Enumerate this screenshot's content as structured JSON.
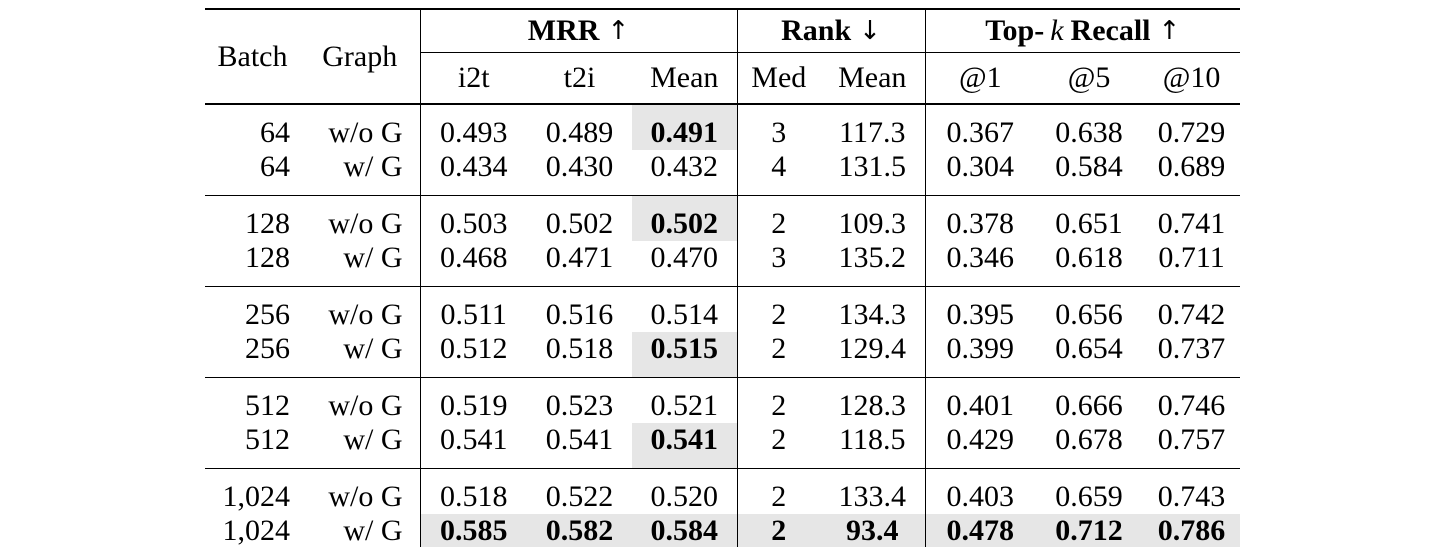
{
  "colors": {
    "background": "#ffffff",
    "text": "#000000",
    "highlight": "#e6e6e6"
  },
  "table": {
    "headers": {
      "batch": "Batch",
      "graph": "Graph",
      "mrr": "MRR",
      "mrr_arrow": "↑",
      "rank": "Rank",
      "rank_arrow": "↓",
      "topk_prefix": "Top-",
      "topk_k": "k",
      "topk_suffix": "Recall",
      "topk_arrow": "↑",
      "sub": [
        "i2t",
        "t2i",
        "Mean",
        "Med",
        "Mean",
        "@1",
        "@5",
        "@10"
      ]
    },
    "rows": [
      [
        "64",
        "w/o G",
        "0.493",
        "0.489",
        "0.491",
        "3",
        "117.3",
        "0.367",
        "0.638",
        "0.729"
      ],
      [
        "64",
        "w/ G",
        "0.434",
        "0.430",
        "0.432",
        "4",
        "131.5",
        "0.304",
        "0.584",
        "0.689"
      ],
      [
        "128",
        "w/o G",
        "0.503",
        "0.502",
        "0.502",
        "2",
        "109.3",
        "0.378",
        "0.651",
        "0.741"
      ],
      [
        "128",
        "w/ G",
        "0.468",
        "0.471",
        "0.470",
        "3",
        "135.2",
        "0.346",
        "0.618",
        "0.711"
      ],
      [
        "256",
        "w/o G",
        "0.511",
        "0.516",
        "0.514",
        "2",
        "134.3",
        "0.395",
        "0.656",
        "0.742"
      ],
      [
        "256",
        "w/ G",
        "0.512",
        "0.518",
        "0.515",
        "2",
        "129.4",
        "0.399",
        "0.654",
        "0.737"
      ],
      [
        "512",
        "w/o G",
        "0.519",
        "0.523",
        "0.521",
        "2",
        "128.3",
        "0.401",
        "0.666",
        "0.746"
      ],
      [
        "512",
        "w/ G",
        "0.541",
        "0.541",
        "0.541",
        "2",
        "118.5",
        "0.429",
        "0.678",
        "0.757"
      ],
      [
        "1,024",
        "w/o G",
        "0.518",
        "0.522",
        "0.520",
        "2",
        "133.4",
        "0.403",
        "0.659",
        "0.743"
      ],
      [
        "1,024",
        "w/ G",
        "0.585",
        "0.582",
        "0.584",
        "2",
        "93.4",
        "0.478",
        "0.712",
        "0.786"
      ]
    ],
    "bold_highlight_mean_rows": [
      0,
      2,
      5,
      7
    ],
    "bold_highlight_full_row": 9
  },
  "chart_data": {
    "type": "table",
    "columns": [
      "Batch",
      "Graph",
      "MRR i2t",
      "MRR t2i",
      "MRR Mean",
      "Rank Med",
      "Rank Mean",
      "Recall@1",
      "Recall@5",
      "Recall@10"
    ],
    "rows": [
      [
        64,
        "w/o G",
        0.493,
        0.489,
        0.491,
        3,
        117.3,
        0.367,
        0.638,
        0.729
      ],
      [
        64,
        "w/ G",
        0.434,
        0.43,
        0.432,
        4,
        131.5,
        0.304,
        0.584,
        0.689
      ],
      [
        128,
        "w/o G",
        0.503,
        0.502,
        0.502,
        2,
        109.3,
        0.378,
        0.651,
        0.741
      ],
      [
        128,
        "w/ G",
        0.468,
        0.471,
        0.47,
        3,
        135.2,
        0.346,
        0.618,
        0.711
      ],
      [
        256,
        "w/o G",
        0.511,
        0.516,
        0.514,
        2,
        134.3,
        0.395,
        0.656,
        0.742
      ],
      [
        256,
        "w/ G",
        0.512,
        0.518,
        0.515,
        2,
        129.4,
        0.399,
        0.654,
        0.737
      ],
      [
        512,
        "w/o G",
        0.519,
        0.523,
        0.521,
        2,
        128.3,
        0.401,
        0.666,
        0.746
      ],
      [
        512,
        "w/ G",
        0.541,
        0.541,
        0.541,
        2,
        118.5,
        0.429,
        0.678,
        0.757
      ],
      [
        1024,
        "w/o G",
        0.518,
        0.522,
        0.52,
        2,
        133.4,
        0.403,
        0.659,
        0.743
      ],
      [
        1024,
        "w/ G",
        0.585,
        0.582,
        0.584,
        2,
        93.4,
        0.478,
        0.712,
        0.786
      ]
    ]
  }
}
